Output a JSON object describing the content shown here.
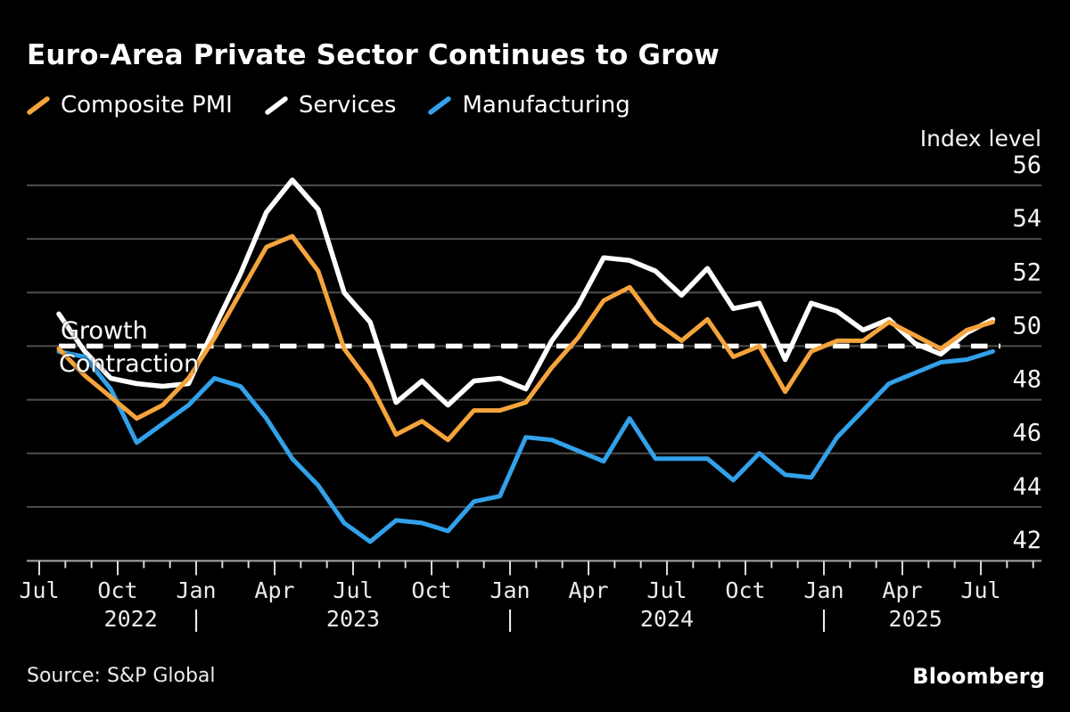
{
  "header": {
    "title": "Euro-Area Private Sector Continues to Grow"
  },
  "legend": {
    "items": [
      {
        "label": "Composite PMI",
        "color": "#F5A43C",
        "icon": "line-swatch-icon"
      },
      {
        "label": "Services",
        "color": "#FFFFFF",
        "icon": "line-swatch-icon"
      },
      {
        "label": "Manufacturing",
        "color": "#32A1EA",
        "icon": "line-swatch-icon"
      }
    ]
  },
  "annotations": {
    "axis_title": "Index level",
    "growth": "Growth",
    "contraction": "Contraction"
  },
  "footer": {
    "source": "Source: S&P Global",
    "brand": "Bloomberg"
  },
  "chart_data": {
    "type": "line",
    "title": "Euro-Area Private Sector Continues to Grow",
    "ylabel": "Index level",
    "x_start": "Jul 2022",
    "x_end": "Jul 2025",
    "x_frequency": "monthly",
    "n_points": 37,
    "ylim": [
      42,
      56.9
    ],
    "yticks": [
      42,
      44,
      46,
      48,
      50,
      52,
      54,
      56
    ],
    "grid": true,
    "legend_position": "top",
    "x_major_tick_every_months": 3,
    "x_major_tick_labels": [
      "Jul",
      "Oct",
      "Jan",
      "Apr",
      "Jul",
      "Oct",
      "Jan",
      "Apr",
      "Jul",
      "Oct",
      "Jan",
      "Apr",
      "Jul"
    ],
    "x_year_row": [
      {
        "text": "2022",
        "month_index": 3.5
      },
      {
        "text": "|",
        "month_index": 6
      },
      {
        "text": "2023",
        "month_index": 12
      },
      {
        "text": "|",
        "month_index": 18
      },
      {
        "text": "2024",
        "month_index": 24
      },
      {
        "text": "|",
        "month_index": 30
      },
      {
        "text": "2025",
        "month_index": 33.5
      }
    ],
    "threshold": {
      "value": 50,
      "style": "dashed",
      "color": "#FFFFFF",
      "label_above": "Growth",
      "label_below": "Contraction"
    },
    "series": [
      {
        "name": "Composite PMI",
        "color": "#F5A43C",
        "values": [
          49.9,
          48.9,
          48.1,
          47.3,
          47.8,
          48.8,
          50.3,
          52.0,
          53.7,
          54.1,
          52.8,
          49.9,
          48.6,
          46.7,
          47.2,
          46.5,
          47.6,
          47.6,
          47.9,
          49.2,
          50.3,
          51.7,
          52.2,
          50.9,
          50.2,
          51.0,
          49.6,
          50.0,
          48.3,
          49.8,
          50.2,
          50.2,
          50.9,
          50.4,
          49.9,
          50.6,
          50.9
        ]
      },
      {
        "name": "Services",
        "color": "#FFFFFF",
        "values": [
          51.2,
          49.8,
          48.8,
          48.6,
          48.5,
          48.6,
          50.7,
          52.7,
          55.0,
          56.2,
          55.1,
          52.0,
          50.9,
          47.9,
          48.7,
          47.8,
          48.7,
          48.8,
          48.4,
          50.2,
          51.5,
          53.3,
          53.2,
          52.8,
          51.9,
          52.9,
          51.4,
          51.6,
          49.5,
          51.6,
          51.3,
          50.6,
          51.0,
          50.1,
          49.7,
          50.5,
          51.0
        ]
      },
      {
        "name": "Manufacturing",
        "color": "#32A1EA",
        "values": [
          49.8,
          49.6,
          48.4,
          46.4,
          47.1,
          47.8,
          48.8,
          48.5,
          47.3,
          45.8,
          44.8,
          43.4,
          42.7,
          43.5,
          43.4,
          43.1,
          44.2,
          44.4,
          46.6,
          46.5,
          46.1,
          45.7,
          47.3,
          45.8,
          45.8,
          45.8,
          45.0,
          46.0,
          45.2,
          45.1,
          46.6,
          47.6,
          48.6,
          49.0,
          49.4,
          49.5,
          49.8
        ]
      }
    ]
  }
}
